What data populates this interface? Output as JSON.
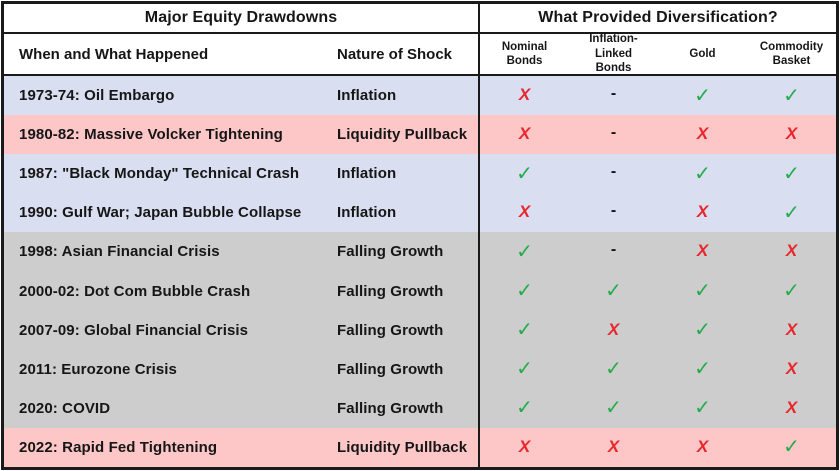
{
  "colors": {
    "row_blue": "#d9def0",
    "row_pink": "#fdc6c7",
    "row_gray": "#cdcdcd",
    "check_green": "#22ac4a",
    "x_red": "#e8262b",
    "border_black": "#1a1a1a",
    "header_white": "#ffffff"
  },
  "table": {
    "header_left_title": "Major Equity Drawdowns",
    "header_right_title": "What Provided Diversification?",
    "col_event": "When and What Happened",
    "col_shock": "Nature of Shock",
    "div_columns": [
      "Nominal Bonds",
      "Inflation-Linked Bonds",
      "Gold",
      "Commodity Basket"
    ],
    "rows": [
      {
        "cls": "trow blue",
        "event": "1973-74: Oil Embargo",
        "shock": "Inflation",
        "marks": [
          {
            "glyph": "X",
            "cls": "mark m-no"
          },
          {
            "glyph": "-",
            "cls": "mark m-na"
          },
          {
            "glyph": "✓",
            "cls": "mark m-yes"
          },
          {
            "glyph": "✓",
            "cls": "mark m-yes"
          }
        ]
      },
      {
        "cls": "trow pink",
        "event": "1980-82: Massive Volcker Tightening",
        "shock": "Liquidity Pullback",
        "marks": [
          {
            "glyph": "X",
            "cls": "mark m-no"
          },
          {
            "glyph": "-",
            "cls": "mark m-na"
          },
          {
            "glyph": "X",
            "cls": "mark m-no"
          },
          {
            "glyph": "X",
            "cls": "mark m-no"
          }
        ]
      },
      {
        "cls": "trow blue",
        "event": "1987: \"Black Monday\" Technical Crash",
        "shock": "Inflation",
        "marks": [
          {
            "glyph": "✓",
            "cls": "mark m-yes"
          },
          {
            "glyph": "-",
            "cls": "mark m-na"
          },
          {
            "glyph": "✓",
            "cls": "mark m-yes"
          },
          {
            "glyph": "✓",
            "cls": "mark m-yes"
          }
        ]
      },
      {
        "cls": "trow blue",
        "event": "1990: Gulf War; Japan Bubble Collapse",
        "shock": "Inflation",
        "marks": [
          {
            "glyph": "X",
            "cls": "mark m-no"
          },
          {
            "glyph": "-",
            "cls": "mark m-na"
          },
          {
            "glyph": "X",
            "cls": "mark m-no"
          },
          {
            "glyph": "✓",
            "cls": "mark m-yes"
          }
        ]
      },
      {
        "cls": "trow gray",
        "event": "1998: Asian Financial Crisis",
        "shock": "Falling Growth",
        "marks": [
          {
            "glyph": "✓",
            "cls": "mark m-yes"
          },
          {
            "glyph": "-",
            "cls": "mark m-na"
          },
          {
            "glyph": "X",
            "cls": "mark m-no"
          },
          {
            "glyph": "X",
            "cls": "mark m-no"
          }
        ]
      },
      {
        "cls": "trow gray",
        "event": "2000-02: Dot Com Bubble Crash",
        "shock": "Falling Growth",
        "marks": [
          {
            "glyph": "✓",
            "cls": "mark m-yes"
          },
          {
            "glyph": "✓",
            "cls": "mark m-yes"
          },
          {
            "glyph": "✓",
            "cls": "mark m-yes"
          },
          {
            "glyph": "✓",
            "cls": "mark m-yes"
          }
        ]
      },
      {
        "cls": "trow gray",
        "event": "2007-09: Global Financial Crisis",
        "shock": "Falling Growth",
        "marks": [
          {
            "glyph": "✓",
            "cls": "mark m-yes"
          },
          {
            "glyph": "X",
            "cls": "mark m-no"
          },
          {
            "glyph": "✓",
            "cls": "mark m-yes"
          },
          {
            "glyph": "X",
            "cls": "mark m-no"
          }
        ]
      },
      {
        "cls": "trow gray",
        "event": "2011: Eurozone Crisis",
        "shock": "Falling Growth",
        "marks": [
          {
            "glyph": "✓",
            "cls": "mark m-yes"
          },
          {
            "glyph": "✓",
            "cls": "mark m-yes"
          },
          {
            "glyph": "✓",
            "cls": "mark m-yes"
          },
          {
            "glyph": "X",
            "cls": "mark m-no"
          }
        ]
      },
      {
        "cls": "trow gray",
        "event": "2020: COVID",
        "shock": "Falling Growth",
        "marks": [
          {
            "glyph": "✓",
            "cls": "mark m-yes"
          },
          {
            "glyph": "✓",
            "cls": "mark m-yes"
          },
          {
            "glyph": "✓",
            "cls": "mark m-yes"
          },
          {
            "glyph": "X",
            "cls": "mark m-no"
          }
        ]
      },
      {
        "cls": "trow pink",
        "event": "2022: Rapid Fed Tightening",
        "shock": "Liquidity Pullback",
        "marks": [
          {
            "glyph": "X",
            "cls": "mark m-no"
          },
          {
            "glyph": "X",
            "cls": "mark m-no"
          },
          {
            "glyph": "X",
            "cls": "mark m-no"
          },
          {
            "glyph": "✓",
            "cls": "mark m-yes"
          }
        ]
      }
    ]
  },
  "chart_data": {
    "type": "table",
    "title": "Major Equity Drawdowns — What Provided Diversification?",
    "section_titles": [
      "Major Equity Drawdowns",
      "What Provided Diversification?"
    ],
    "columns": [
      "When and What Happened",
      "Nature of Shock",
      "Nominal Bonds",
      "Inflation-Linked Bonds",
      "Gold",
      "Commodity Basket"
    ],
    "rows": [
      [
        "1973-74: Oil Embargo",
        "Inflation",
        "no",
        "n/a",
        "yes",
        "yes"
      ],
      [
        "1980-82: Massive Volcker Tightening",
        "Liquidity Pullback",
        "no",
        "n/a",
        "no",
        "no"
      ],
      [
        "1987: \"Black Monday\" Technical Crash",
        "Inflation",
        "yes",
        "n/a",
        "yes",
        "yes"
      ],
      [
        "1990: Gulf War; Japan Bubble Collapse",
        "Inflation",
        "no",
        "n/a",
        "no",
        "yes"
      ],
      [
        "1998: Asian Financial Crisis",
        "Falling Growth",
        "yes",
        "n/a",
        "no",
        "no"
      ],
      [
        "2000-02: Dot Com Bubble Crash",
        "Falling Growth",
        "yes",
        "yes",
        "yes",
        "yes"
      ],
      [
        "2007-09: Global Financial Crisis",
        "Falling Growth",
        "yes",
        "no",
        "yes",
        "no"
      ],
      [
        "2011: Eurozone Crisis",
        "Falling Growth",
        "yes",
        "yes",
        "yes",
        "no"
      ],
      [
        "2020: COVID",
        "Falling Growth",
        "yes",
        "yes",
        "yes",
        "no"
      ],
      [
        "2022: Rapid Fed Tightening",
        "Liquidity Pullback",
        "no",
        "no",
        "no",
        "yes"
      ]
    ],
    "row_band_colors": [
      "blue",
      "pink",
      "blue",
      "blue",
      "gray",
      "gray",
      "gray",
      "gray",
      "gray",
      "pink"
    ],
    "legend": {
      "yes": "green check",
      "no": "red X",
      "n/a": "dash (not applicable)"
    }
  }
}
